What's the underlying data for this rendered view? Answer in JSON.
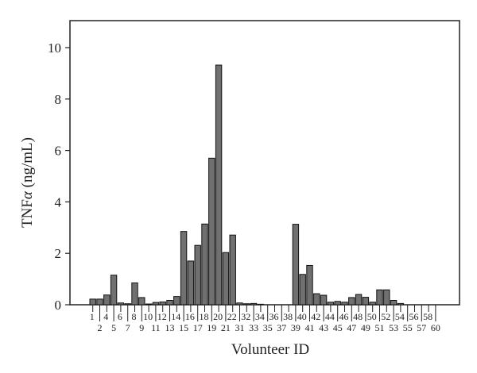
{
  "chart_data": {
    "type": "bar",
    "title": "",
    "xlabel": "Volunteer ID",
    "ylabel": "TNFα (ng/mL)",
    "ylabel_parts": {
      "prefix": "TNF",
      "greek": "α",
      "suffix": " (ng/mL)"
    },
    "ylim": [
      0,
      11
    ],
    "yticks": [
      0,
      2,
      4,
      6,
      8,
      10
    ],
    "grid": false,
    "legend": null,
    "categories": [
      "1",
      "2",
      "4",
      "5",
      "6",
      "7",
      "8",
      "9",
      "10",
      "11",
      "12",
      "13",
      "14",
      "15",
      "16",
      "17",
      "18",
      "19",
      "20",
      "21",
      "22",
      "31",
      "32",
      "33",
      "34",
      "35",
      "36",
      "37",
      "38",
      "39",
      "40",
      "41",
      "42",
      "43",
      "44",
      "45",
      "46",
      "47",
      "48",
      "49",
      "50",
      "51",
      "52",
      "53",
      "54",
      "55",
      "56",
      "57",
      "58",
      "60"
    ],
    "values": [
      0.22,
      0.22,
      0.38,
      1.15,
      0.07,
      0.04,
      0.85,
      0.28,
      0.03,
      0.09,
      0.11,
      0.17,
      0.32,
      2.85,
      1.7,
      2.31,
      3.14,
      5.7,
      9.32,
      2.03,
      2.71,
      0.07,
      0.04,
      0.05,
      0.02,
      0.0,
      0.0,
      0.0,
      0.0,
      3.13,
      1.18,
      1.53,
      0.43,
      0.37,
      0.1,
      0.13,
      0.1,
      0.28,
      0.4,
      0.29,
      0.1,
      0.58,
      0.58,
      0.17,
      0.05,
      0.0,
      0.0,
      0.0,
      0.0,
      0.0
    ],
    "colors": {
      "bar_fill": "#707070",
      "bar_stroke": "#111111",
      "axis": "#222222"
    }
  }
}
